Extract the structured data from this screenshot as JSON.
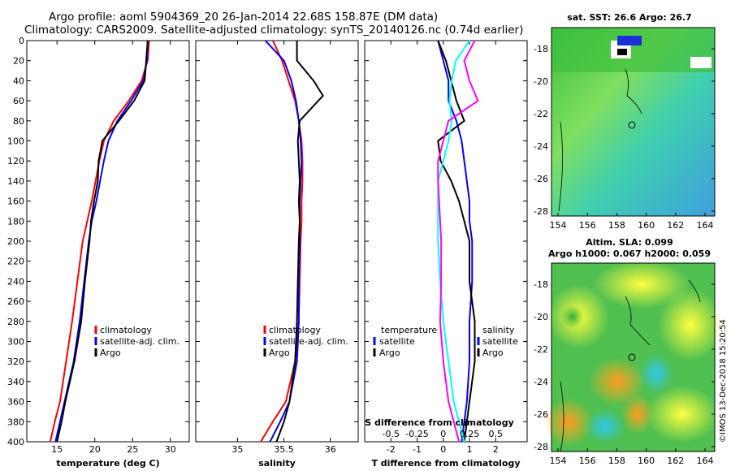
{
  "header": {
    "line1": "Argo profile: aoml 5904369_20 26-Jan-2014 22.68S 158.87E (DM data)",
    "line2": "Climatology: CARS2009. Satellite-adjusted climatology: synTS_20140126.nc (0.74d earlier)"
  },
  "colors": {
    "climatology": "#ff0000",
    "satellite": "#0000ff",
    "argo": "#000000",
    "salinity_diff": "#ff00ff",
    "temp_diff": "#00ffff"
  },
  "chart_data": [
    {
      "type": "line",
      "title": "",
      "xlabel": "temperature (deg C)",
      "ylabel": "",
      "xlim": [
        11,
        32.5
      ],
      "ylim": [
        400,
        0
      ],
      "xticks": [
        15,
        20,
        25,
        30
      ],
      "yticks": [
        0,
        20,
        40,
        60,
        80,
        100,
        120,
        140,
        160,
        180,
        200,
        220,
        240,
        260,
        280,
        300,
        320,
        340,
        360,
        380,
        400
      ],
      "legend": [
        "climatology",
        "satellite-adj. clim.",
        "Argo"
      ],
      "series": [
        {
          "name": "climatology",
          "x": [
            27.2,
            27.0,
            26.2,
            24.5,
            22.5,
            21.2,
            20.6,
            20.1,
            19.6,
            19.0,
            18.4,
            17.7,
            17.0,
            16.2,
            15.4,
            14.7,
            14.1
          ],
          "y": [
            0,
            20,
            40,
            60,
            80,
            100,
            120,
            140,
            160,
            180,
            200,
            240,
            280,
            320,
            360,
            380,
            400
          ]
        },
        {
          "name": "satellite-adj. clim.",
          "x": [
            27.0,
            26.9,
            26.4,
            24.8,
            23.0,
            21.8,
            21.2,
            20.7,
            20.2,
            19.6,
            19.2,
            18.6,
            18.0,
            17.2,
            16.0,
            15.4,
            14.8
          ],
          "y": [
            0,
            20,
            40,
            60,
            80,
            100,
            120,
            140,
            160,
            180,
            200,
            240,
            280,
            320,
            360,
            380,
            400
          ]
        },
        {
          "name": "Argo",
          "x": [
            27.0,
            26.8,
            26.6,
            25.2,
            23.2,
            21.0,
            20.5,
            20.4,
            19.9,
            19.5,
            19.3,
            18.7,
            18.2,
            17.3,
            16.1,
            15.6,
            15.0
          ],
          "y": [
            0,
            20,
            40,
            60,
            80,
            100,
            120,
            140,
            160,
            180,
            200,
            240,
            280,
            320,
            360,
            380,
            400
          ]
        }
      ]
    },
    {
      "type": "line",
      "xlabel": "salinity",
      "xlim": [
        34.55,
        36.3
      ],
      "ylim": [
        400,
        0
      ],
      "xticks": [
        35,
        35.5,
        36
      ],
      "xtick_labels": [
        "35",
        "35.5",
        "36"
      ],
      "legend": [
        "climatology",
        "satellite-adj. clim.",
        "Argo"
      ],
      "series": [
        {
          "name": "climatology",
          "x": [
            35.38,
            35.48,
            35.55,
            35.62,
            35.66,
            35.69,
            35.7,
            35.7,
            35.69,
            35.69,
            35.68,
            35.67,
            35.66,
            35.62,
            35.52,
            35.38,
            35.25
          ],
          "y": [
            0,
            20,
            40,
            60,
            80,
            100,
            120,
            140,
            160,
            180,
            200,
            240,
            280,
            320,
            360,
            380,
            400
          ]
        },
        {
          "name": "satellite-adj. clim.",
          "x": [
            35.3,
            35.5,
            35.58,
            35.63,
            35.66,
            35.68,
            35.69,
            35.68,
            35.67,
            35.67,
            35.67,
            35.66,
            35.66,
            35.64,
            35.56,
            35.46,
            35.35
          ],
          "y": [
            0,
            20,
            40,
            60,
            80,
            100,
            120,
            140,
            160,
            180,
            200,
            240,
            280,
            320,
            360,
            380,
            400
          ]
        },
        {
          "name": "Argo",
          "x": [
            35.64,
            35.64,
            35.82,
            35.92,
            35.67,
            35.65,
            35.66,
            35.67,
            35.66,
            35.67,
            35.66,
            35.65,
            35.64,
            35.62,
            35.56,
            35.5,
            35.42
          ],
          "y": [
            0,
            20,
            40,
            55,
            80,
            100,
            120,
            140,
            160,
            180,
            200,
            240,
            280,
            320,
            360,
            380,
            400
          ]
        }
      ]
    },
    {
      "type": "line",
      "xlabel": "T difference from climatology",
      "top_axis_label": "S difference from climatology",
      "xlim": [
        -3,
        3.2
      ],
      "ylim": [
        400,
        0
      ],
      "xticks": [
        -2,
        -1,
        0,
        1,
        2
      ],
      "top_xticks": [
        "-0.5",
        "-0.25",
        "0",
        "0.25",
        "0.5"
      ],
      "legend_temperature": [
        "temperature",
        "satellite",
        "Argo"
      ],
      "legend_salinity": [
        "salinity",
        "satellite",
        "Argo"
      ],
      "series": [
        {
          "name": "temperature satellite",
          "x": [
            -0.2,
            0.0,
            0.2,
            0.2,
            0.5,
            0.7,
            0.8,
            0.9,
            1.0,
            1.0,
            1.1,
            1.1,
            1.0,
            1.0,
            0.9,
            0.8,
            0.7
          ],
          "y": [
            0,
            20,
            40,
            60,
            80,
            100,
            120,
            140,
            160,
            180,
            200,
            240,
            280,
            320,
            360,
            380,
            400
          ]
        },
        {
          "name": "temperature Argo",
          "x": [
            -0.2,
            0.1,
            0.3,
            0.5,
            0.8,
            -0.2,
            -0.1,
            0.3,
            0.6,
            0.8,
            1.0,
            1.0,
            1.2,
            1.2,
            1.0,
            0.9,
            0.8
          ],
          "y": [
            0,
            20,
            40,
            60,
            80,
            100,
            120,
            140,
            160,
            180,
            200,
            240,
            280,
            320,
            360,
            380,
            400
          ]
        },
        {
          "name": "salinity satellite",
          "x": [
            0.25,
            0.12,
            0.08,
            0.06,
            0.08,
            0.05,
            0.0,
            -0.05,
            -0.05,
            -0.05,
            -0.05,
            -0.03,
            0.0,
            0.05,
            0.1,
            0.15,
            0.2
          ],
          "y": [
            0,
            20,
            40,
            60,
            80,
            100,
            120,
            140,
            160,
            180,
            200,
            240,
            280,
            320,
            360,
            380,
            400
          ]
        },
        {
          "name": "salinity Argo",
          "x": [
            0.3,
            0.2,
            0.25,
            0.33,
            0.05,
            0.0,
            -0.05,
            -0.05,
            -0.04,
            -0.03,
            -0.02,
            -0.02,
            -0.03,
            0.0,
            0.05,
            0.1,
            0.15
          ],
          "y": [
            0,
            20,
            40,
            60,
            80,
            100,
            120,
            140,
            160,
            180,
            200,
            240,
            280,
            320,
            360,
            380,
            400
          ]
        }
      ]
    },
    {
      "type": "heatmap",
      "title": "sat. SST: 26.6 Argo: 26.7",
      "xticks": [
        "154",
        "156",
        "158",
        "160",
        "162",
        "164"
      ],
      "yticks": [
        "-18",
        "-20",
        "-22",
        "-24",
        "-26",
        "-28"
      ]
    },
    {
      "type": "heatmap",
      "title": "Altim. SLA: 0.099",
      "subtitle": "Argo h1000: 0.067 h2000: 0.059",
      "xticks": [
        "154",
        "156",
        "158",
        "160",
        "162",
        "164"
      ],
      "yticks": [
        "-18",
        "-20",
        "-22",
        "-24",
        "-26",
        "-28"
      ]
    }
  ],
  "footer": {
    "credit": "©IMOS 13-Dec-2018 15:20:54"
  }
}
